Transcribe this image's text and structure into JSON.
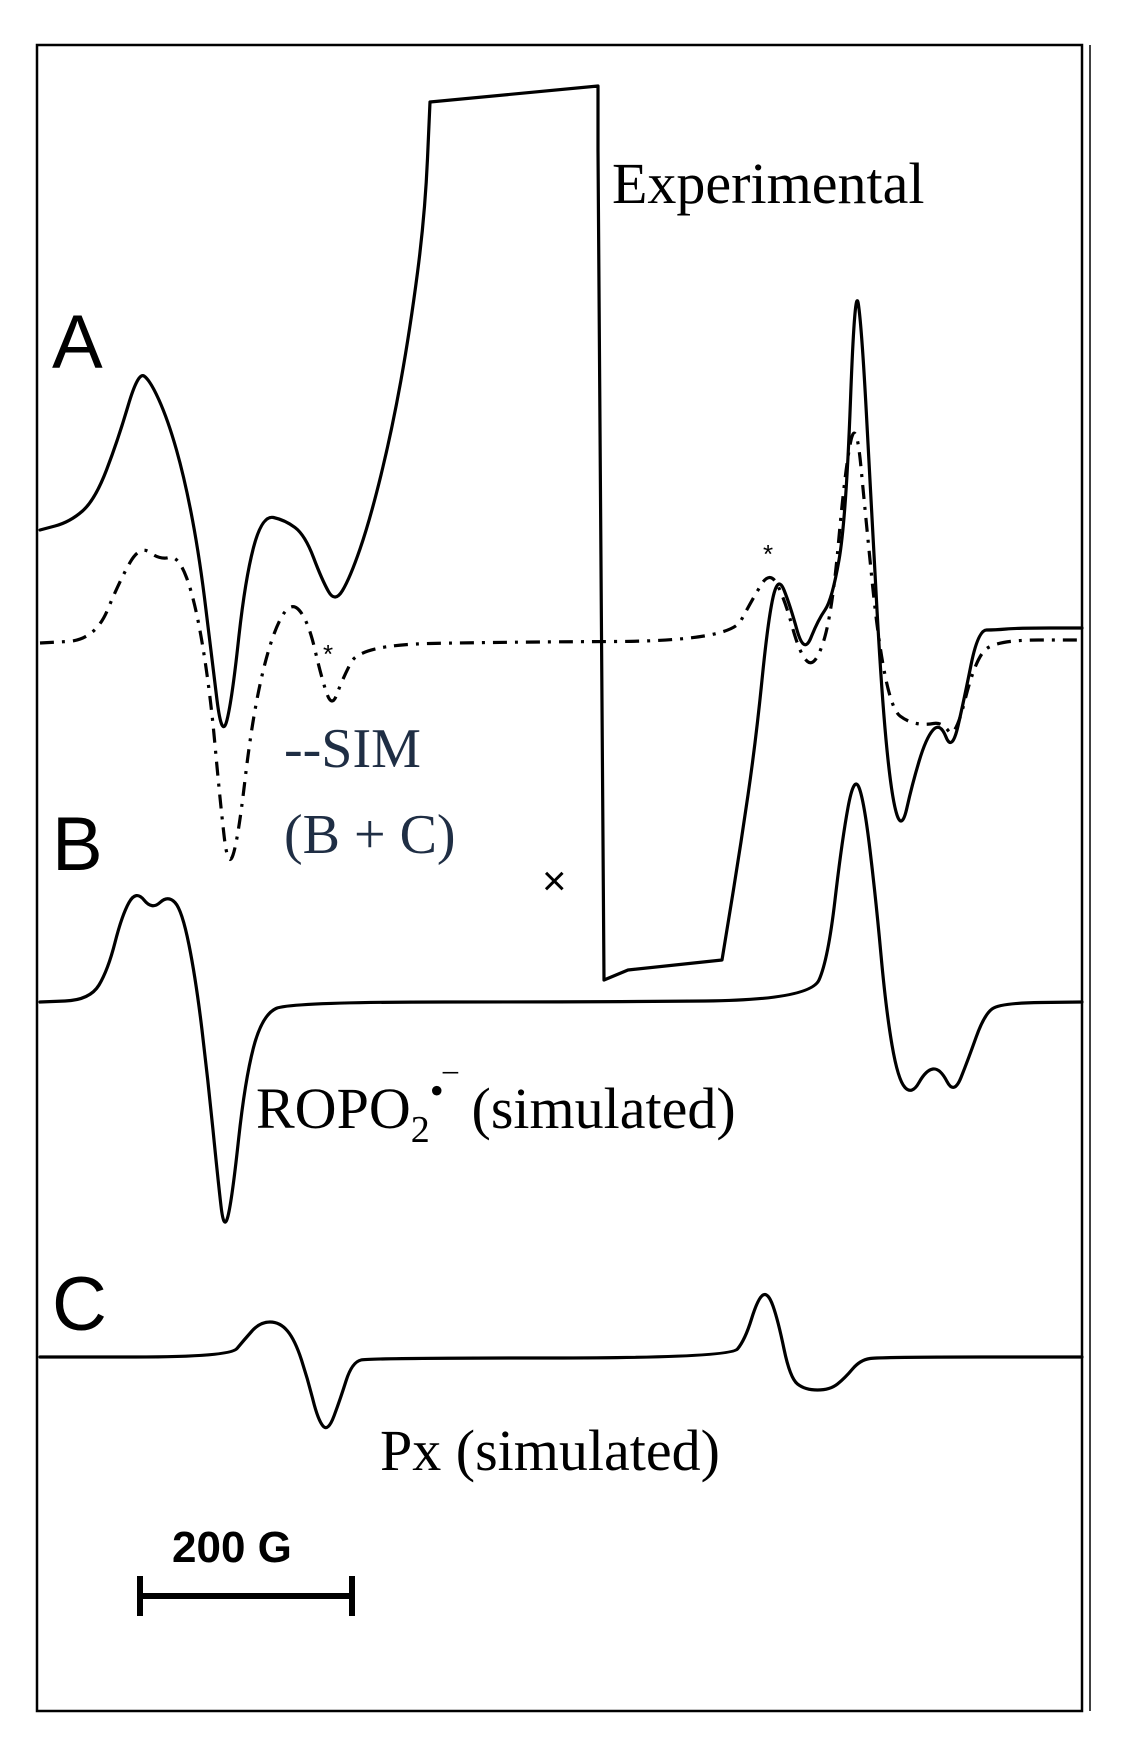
{
  "chart_data": {
    "type": "line",
    "panels": [
      {
        "letter": "A",
        "series": [
          {
            "name": "Experimental",
            "style": "solid"
          },
          {
            "name": "--SIM",
            "sublabel": "(B + C)",
            "style": "dash-dot"
          }
        ]
      },
      {
        "letter": "B",
        "series": [
          {
            "name": "ROPO2•− (simulated)",
            "style": "solid"
          }
        ]
      },
      {
        "letter": "C",
        "series": [
          {
            "name": "Px (simulated)",
            "style": "solid"
          }
        ]
      }
    ],
    "markers": {
      "x_mark": "×",
      "star": "*"
    },
    "scale_bar": {
      "label": "200 G",
      "value": 200,
      "unit": "G"
    },
    "axes": {
      "x_ticks": false,
      "y_ticks": false,
      "grid": false
    }
  },
  "labels": {
    "panel_a": "A",
    "panel_b": "B",
    "panel_c": "C",
    "experimental": "Experimental",
    "sim_line1": "--SIM",
    "sim_line2": "(B + C)",
    "ropo_main": "ROPO",
    "ropo_sub": "2",
    "ropo_sup": "•‾",
    "ropo_tail": " (simulated)",
    "px": "Px (simulated)",
    "x_mark": "×",
    "star": "*",
    "scale": "200 G"
  }
}
